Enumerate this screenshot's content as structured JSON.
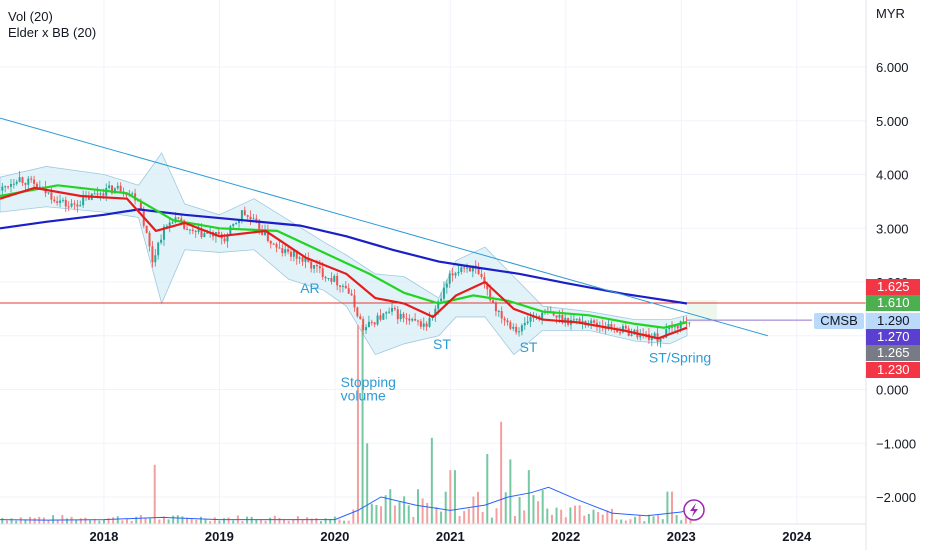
{
  "indicators": [
    "Vol (20)",
    "Elder x BB (20)"
  ],
  "chart_data": {
    "type": "candlestick",
    "currency": "MYR",
    "symbol": "CMSB",
    "yticks": [
      "6.000",
      "5.000",
      "4.000",
      "3.000",
      "2.000",
      "1.000",
      "0.000",
      "−1.000",
      "−2.000"
    ],
    "ytick_values": [
      6,
      5,
      4,
      3,
      2,
      1,
      0,
      -1,
      -2
    ],
    "xticks": [
      "2018",
      "2019",
      "2020",
      "2021",
      "2022",
      "2023",
      "2024"
    ],
    "xtick_values": [
      2018,
      2019,
      2020,
      2021,
      2022,
      2023,
      2024
    ],
    "ylim": [
      -2.6,
      6.5
    ],
    "xlim": [
      2017.1,
      2024.6
    ],
    "horizontal_line": 1.61,
    "price_badges": [
      {
        "label": "1.625",
        "value": 1.625,
        "color": "#f23645"
      },
      {
        "label": "1.610",
        "value": 1.61,
        "color": "#4caf50"
      },
      {
        "label": "1.290",
        "value": 1.29,
        "color": "#bbd9fb"
      },
      {
        "label": "1.270",
        "value": 1.27,
        "color": "#5b3fd1"
      },
      {
        "label": "1.265",
        "value": 1.265,
        "color": "#787b86"
      },
      {
        "label": "1.230",
        "value": 1.23,
        "color": "#f23645"
      }
    ],
    "annotations": [
      {
        "text": "AR",
        "x": 2019.7,
        "y": 1.8
      },
      {
        "text": "ST",
        "x": 2020.85,
        "y": 0.75
      },
      {
        "text": "ST",
        "x": 2021.6,
        "y": 0.7
      },
      {
        "text": "ST/Spring",
        "x": 2022.72,
        "y": 0.5
      },
      {
        "text": "Stopping",
        "x": 2020.05,
        "y": 0.05
      },
      {
        "text": "volume",
        "x": 2020.05,
        "y": -0.2
      }
    ],
    "trendline": {
      "x": [
        2017.1,
        2023.75
      ],
      "y": [
        5.05,
        1.0
      ]
    },
    "sma200": {
      "x": [
        2017.1,
        2017.5,
        2018.0,
        2018.3,
        2018.7,
        2019.2,
        2019.7,
        2020.1,
        2020.5,
        2020.9,
        2021.2,
        2021.6,
        2022.0,
        2022.5,
        2023.05
      ],
      "y": [
        3.0,
        3.12,
        3.25,
        3.35,
        3.25,
        3.15,
        3.05,
        2.85,
        2.6,
        2.38,
        2.28,
        2.15,
        1.98,
        1.78,
        1.6
      ]
    },
    "ema_red": {
      "x": [
        2017.1,
        2017.4,
        2017.8,
        2018.2,
        2018.45,
        2018.7,
        2019.0,
        2019.4,
        2019.75,
        2020.1,
        2020.35,
        2020.6,
        2020.85,
        2021.05,
        2021.3,
        2021.55,
        2021.8,
        2022.1,
        2022.5,
        2022.8,
        2023.05
      ],
      "y": [
        3.55,
        3.75,
        3.6,
        3.55,
        2.95,
        3.1,
        2.85,
        2.95,
        2.45,
        2.15,
        1.7,
        1.6,
        1.35,
        1.75,
        2.0,
        1.5,
        1.3,
        1.25,
        1.1,
        0.95,
        1.15
      ]
    },
    "ema_green": {
      "x": [
        2017.1,
        2017.6,
        2018.2,
        2018.6,
        2019.0,
        2019.5,
        2019.9,
        2020.3,
        2020.6,
        2020.9,
        2021.2,
        2021.5,
        2021.8,
        2022.2,
        2022.6,
        2022.85,
        2023.05
      ],
      "y": [
        3.6,
        3.8,
        3.65,
        3.15,
        3.0,
        2.95,
        2.55,
        2.15,
        1.8,
        1.6,
        1.75,
        1.65,
        1.45,
        1.38,
        1.22,
        1.15,
        1.25
      ]
    },
    "price_close": {
      "x": [
        2017.1,
        2017.25,
        2017.4,
        2017.55,
        2017.7,
        2017.85,
        2018.0,
        2018.15,
        2018.3,
        2018.42,
        2018.5,
        2018.6,
        2018.75,
        2018.9,
        2019.05,
        2019.2,
        2019.35,
        2019.5,
        2019.65,
        2019.8,
        2019.95,
        2020.1,
        2020.2,
        2020.25,
        2020.35,
        2020.5,
        2020.65,
        2020.8,
        2020.9,
        2021.0,
        2021.1,
        2021.2,
        2021.3,
        2021.4,
        2021.5,
        2021.6,
        2021.7,
        2021.85,
        2022.0,
        2022.2,
        2022.4,
        2022.6,
        2022.8,
        2022.9,
        2023.0,
        2023.08
      ],
      "y": [
        3.7,
        3.95,
        3.8,
        3.6,
        3.4,
        3.55,
        3.7,
        3.75,
        3.55,
        2.4,
        2.9,
        3.2,
        2.9,
        2.9,
        2.8,
        3.3,
        3.0,
        2.6,
        2.5,
        2.3,
        2.1,
        1.9,
        1.4,
        1.1,
        1.3,
        1.45,
        1.25,
        1.2,
        1.6,
        2.1,
        2.3,
        2.25,
        1.9,
        1.5,
        1.25,
        1.1,
        1.35,
        1.4,
        1.3,
        1.25,
        1.15,
        1.05,
        0.95,
        1.1,
        1.25,
        1.28
      ]
    },
    "bb_upper": {
      "x": [
        2017.1,
        2017.5,
        2018.0,
        2018.3,
        2018.5,
        2018.7,
        2019.0,
        2019.3,
        2019.6,
        2019.9,
        2020.1,
        2020.35,
        2020.6,
        2020.9,
        2021.05,
        2021.3,
        2021.55,
        2021.8,
        2022.2,
        2022.6,
        2022.9,
        2023.05
      ],
      "y": [
        3.95,
        4.15,
        4.0,
        3.8,
        4.4,
        3.45,
        3.25,
        3.55,
        3.15,
        2.75,
        2.5,
        2.15,
        2.1,
        1.7,
        2.4,
        2.65,
        2.1,
        1.55,
        1.45,
        1.3,
        1.3,
        1.38
      ]
    },
    "bb_lower": {
      "x": [
        2017.1,
        2017.5,
        2018.0,
        2018.3,
        2018.5,
        2018.7,
        2019.0,
        2019.3,
        2019.6,
        2019.9,
        2020.1,
        2020.35,
        2020.6,
        2020.9,
        2021.05,
        2021.3,
        2021.55,
        2021.8,
        2022.2,
        2022.6,
        2022.9,
        2023.05
      ],
      "y": [
        3.3,
        3.4,
        3.3,
        3.2,
        1.6,
        2.6,
        2.55,
        2.6,
        2.05,
        1.85,
        1.55,
        0.65,
        0.85,
        1.0,
        1.35,
        1.35,
        0.65,
        1.1,
        1.1,
        0.9,
        0.85,
        1.0
      ]
    },
    "volume_ma": {
      "x": [
        2017.1,
        2017.5,
        2018.0,
        2018.5,
        2019.0,
        2019.5,
        2020.0,
        2020.2,
        2020.4,
        2020.7,
        2021.0,
        2021.3,
        2021.5,
        2021.7,
        2021.85,
        2022.1,
        2022.4,
        2022.7,
        2023.0,
        2023.1
      ],
      "y": [
        -2.42,
        -2.43,
        -2.42,
        -2.38,
        -2.42,
        -2.42,
        -2.42,
        -2.25,
        -2.0,
        -2.15,
        -2.25,
        -2.15,
        -2.0,
        -1.92,
        -1.82,
        -2.05,
        -2.3,
        -2.35,
        -2.28,
        -2.2
      ]
    }
  }
}
